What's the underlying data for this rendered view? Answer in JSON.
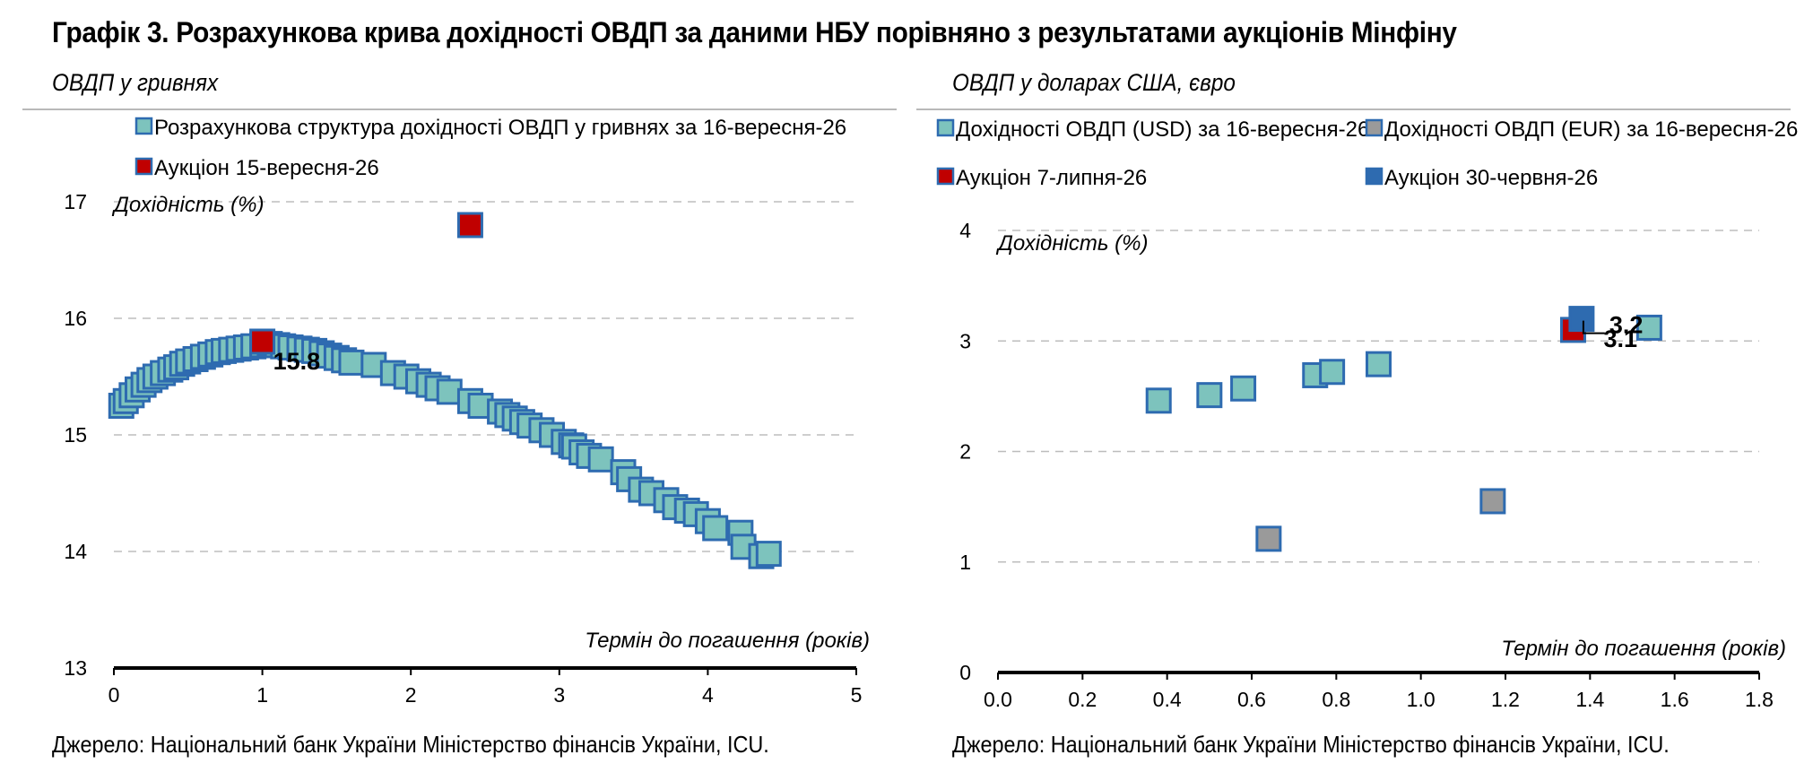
{
  "title": "Графік 3. Розрахункова крива дохідності ОВДП за даними НБУ порівняно з результатами аукціонів Мінфіну",
  "source": "Джерело: Національний банк України Міністерство фінансів України, ICU.",
  "colors": {
    "teal": "#7dc3bd",
    "blue_edge": "#2e6bb0",
    "red": "#c00000",
    "grey": "#9a9a9a",
    "blue": "#2e6bb0"
  },
  "chart_data": [
    {
      "type": "scatter",
      "subtitle": "ОВДП у гривнях",
      "ylabel": "Дохідність (%)",
      "xlabel": "Термін до погашення (років)",
      "xlim": [
        0,
        5
      ],
      "ylim": [
        13,
        17
      ],
      "xticks": [
        "0",
        "1",
        "2",
        "3",
        "4",
        "5"
      ],
      "yticks": [
        "13",
        "14",
        "15",
        "16",
        "17"
      ],
      "grid": true,
      "legend_position": "top",
      "series": [
        {
          "name": "Розрахункова структура дохідності ОВДП у гривнях за 16-вересня-26",
          "style": "teal",
          "points": [
            [
              0.05,
              15.25
            ],
            [
              0.08,
              15.29
            ],
            [
              0.12,
              15.34
            ],
            [
              0.16,
              15.39
            ],
            [
              0.2,
              15.43
            ],
            [
              0.24,
              15.47
            ],
            [
              0.28,
              15.5
            ],
            [
              0.33,
              15.53
            ],
            [
              0.38,
              15.56
            ],
            [
              0.42,
              15.58
            ],
            [
              0.46,
              15.61
            ],
            [
              0.5,
              15.63
            ],
            [
              0.55,
              15.65
            ],
            [
              0.6,
              15.67
            ],
            [
              0.65,
              15.69
            ],
            [
              0.7,
              15.71
            ],
            [
              0.74,
              15.72
            ],
            [
              0.79,
              15.73
            ],
            [
              0.84,
              15.74
            ],
            [
              0.89,
              15.75
            ],
            [
              0.94,
              15.76
            ],
            [
              1.0,
              15.77
            ],
            [
              1.05,
              15.78
            ],
            [
              1.1,
              15.77
            ],
            [
              1.14,
              15.76
            ],
            [
              1.19,
              15.75
            ],
            [
              1.25,
              15.74
            ],
            [
              1.3,
              15.73
            ],
            [
              1.35,
              15.72
            ],
            [
              1.4,
              15.7
            ],
            [
              1.45,
              15.68
            ],
            [
              1.5,
              15.66
            ],
            [
              1.55,
              15.64
            ],
            [
              1.6,
              15.62
            ],
            [
              1.75,
              15.6
            ],
            [
              1.88,
              15.53
            ],
            [
              1.97,
              15.5
            ],
            [
              2.05,
              15.46
            ],
            [
              2.12,
              15.43
            ],
            [
              2.18,
              15.4
            ],
            [
              2.26,
              15.37
            ],
            [
              2.4,
              15.29
            ],
            [
              2.47,
              15.25
            ],
            [
              2.6,
              15.2
            ],
            [
              2.65,
              15.17
            ],
            [
              2.7,
              15.14
            ],
            [
              2.75,
              15.11
            ],
            [
              2.8,
              15.08
            ],
            [
              2.88,
              15.04
            ],
            [
              2.95,
              15.0
            ],
            [
              3.03,
              14.94
            ],
            [
              3.08,
              14.91
            ],
            [
              3.1,
              14.9
            ],
            [
              3.15,
              14.85
            ],
            [
              3.2,
              14.82
            ],
            [
              3.28,
              14.79
            ],
            [
              3.43,
              14.68
            ],
            [
              3.47,
              14.62
            ],
            [
              3.55,
              14.53
            ],
            [
              3.62,
              14.5
            ],
            [
              3.72,
              14.44
            ],
            [
              3.78,
              14.38
            ],
            [
              3.86,
              14.35
            ],
            [
              3.92,
              14.32
            ],
            [
              4.0,
              14.26
            ],
            [
              4.05,
              14.2
            ],
            [
              4.22,
              14.16
            ],
            [
              4.24,
              14.04
            ],
            [
              4.36,
              13.96
            ],
            [
              4.41,
              13.98
            ]
          ]
        },
        {
          "name": "Аукціон 15-вересня-26",
          "style": "red",
          "points": [
            [
              1.0,
              15.8
            ],
            [
              2.4,
              16.8
            ]
          ]
        }
      ],
      "data_labels": [
        {
          "x": 1.0,
          "y": 15.8,
          "text": "15.8"
        }
      ]
    },
    {
      "type": "scatter",
      "subtitle": "ОВДП у доларах США, євро",
      "ylabel": "Дохідність (%)",
      "xlabel": "Термін до погашення (років)",
      "xlim": [
        0,
        1.8
      ],
      "ylim": [
        0,
        4
      ],
      "xticks": [
        "0.0",
        "0.2",
        "0.4",
        "0.6",
        "0.8",
        "1.0",
        "1.2",
        "1.4",
        "1.6",
        "1.8"
      ],
      "yticks": [
        "0",
        "1",
        "2",
        "3",
        "4"
      ],
      "grid": true,
      "legend_position": "top",
      "series": [
        {
          "name": "Дохідності ОВДП (USD) за 16-вересня-26",
          "style": "teal",
          "points": [
            [
              0.38,
              2.46
            ],
            [
              0.5,
              2.51
            ],
            [
              0.58,
              2.57
            ],
            [
              0.75,
              2.69
            ],
            [
              0.79,
              2.72
            ],
            [
              0.9,
              2.79
            ],
            [
              1.54,
              3.12
            ]
          ]
        },
        {
          "name": "Дохідності ОВДП (EUR) за 16-вересня-26",
          "style": "grey",
          "points": [
            [
              0.64,
              1.21
            ],
            [
              1.17,
              1.55
            ]
          ]
        },
        {
          "name": "Аукціон 7-липня-26",
          "style": "red",
          "points": [
            [
              1.36,
              3.1
            ]
          ]
        },
        {
          "name": "Аукціон 30-червня-26",
          "style": "blue",
          "points": [
            [
              1.38,
              3.2
            ]
          ]
        }
      ],
      "data_labels": [
        {
          "x": 1.38,
          "y": 3.2,
          "text": "3.2"
        },
        {
          "x": 1.36,
          "y": 3.1,
          "text": "3.1"
        }
      ]
    }
  ]
}
